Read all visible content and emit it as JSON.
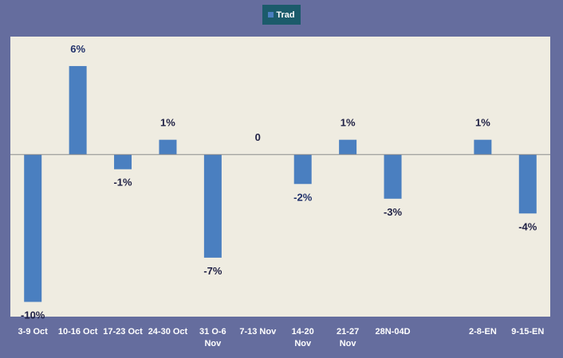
{
  "chart_data": {
    "type": "bar",
    "legend": {
      "label": "Trad",
      "placement": "top-center"
    },
    "categories": [
      [
        "3-9 Oct"
      ],
      [
        "10-16 Oct"
      ],
      [
        "17-23 Oct"
      ],
      [
        "24-30 Oct"
      ],
      [
        "31 O-6",
        "Nov"
      ],
      [
        "7-13 Nov"
      ],
      [
        "14-20",
        "Nov"
      ],
      [
        "21-27",
        "Nov"
      ],
      [
        "28N-04D"
      ],
      [
        ""
      ],
      [
        "2-8-EN"
      ],
      [
        "9-15-EN"
      ]
    ],
    "series": [
      {
        "name": "Trad",
        "values": [
          -10,
          6,
          -1,
          1,
          -7,
          0,
          -2,
          1,
          -3,
          null,
          1,
          -4
        ],
        "data_labels": [
          "-10%",
          "6%",
          "-1%",
          "1%",
          "-7%",
          "0",
          "-2%",
          "1%",
          "-3%",
          "",
          "1%",
          "-4%"
        ]
      }
    ],
    "ylim": [
      -11,
      8
    ],
    "grid": false,
    "colors": {
      "bar": "#4a7fc0",
      "plot_bg": "#efece1",
      "frame_bg": "#656d9e",
      "zero_line": "#8c8c8c",
      "label_dark": "#1f2044",
      "label_navy": "#20306a",
      "axis_label": "#ffffff"
    }
  }
}
